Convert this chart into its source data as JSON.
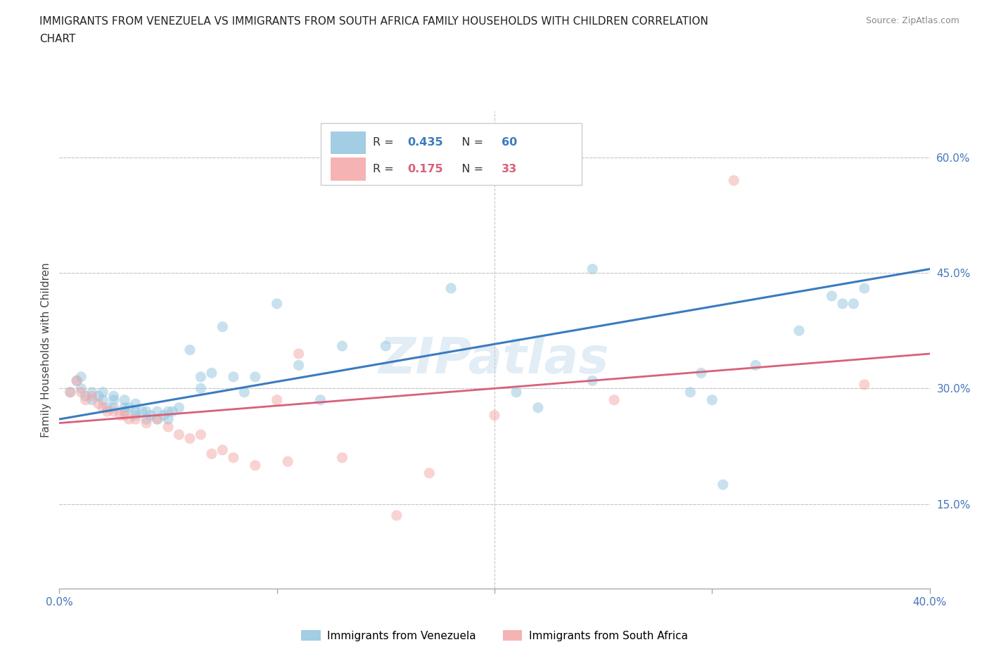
{
  "title_line1": "IMMIGRANTS FROM VENEZUELA VS IMMIGRANTS FROM SOUTH AFRICA FAMILY HOUSEHOLDS WITH CHILDREN CORRELATION",
  "title_line2": "CHART",
  "source": "Source: ZipAtlas.com",
  "ylabel": "Family Households with Children",
  "xlim": [
    0.0,
    0.4
  ],
  "ylim": [
    0.04,
    0.66
  ],
  "xticks": [
    0.0,
    0.1,
    0.2,
    0.3,
    0.4
  ],
  "xtick_labels": [
    "0.0%",
    "",
    "",
    "",
    "40.0%"
  ],
  "ytick_labels_right": [
    "15.0%",
    "30.0%",
    "45.0%",
    "60.0%"
  ],
  "ytick_positions_right": [
    0.15,
    0.3,
    0.45,
    0.6
  ],
  "blue_color": "#92c5de",
  "pink_color": "#f4a6a6",
  "blue_line_color": "#3a7bbf",
  "pink_line_color": "#d9607a",
  "watermark": "ZIPatlas",
  "legend_R_blue": "0.435",
  "legend_N_blue": "60",
  "legend_R_pink": "0.175",
  "legend_N_pink": "33",
  "blue_scatter_x": [
    0.005,
    0.008,
    0.01,
    0.01,
    0.012,
    0.015,
    0.015,
    0.018,
    0.02,
    0.02,
    0.022,
    0.025,
    0.025,
    0.025,
    0.03,
    0.03,
    0.03,
    0.032,
    0.035,
    0.035,
    0.035,
    0.038,
    0.04,
    0.04,
    0.042,
    0.045,
    0.045,
    0.048,
    0.05,
    0.05,
    0.052,
    0.055,
    0.06,
    0.065,
    0.065,
    0.07,
    0.075,
    0.08,
    0.085,
    0.09,
    0.1,
    0.11,
    0.12,
    0.13,
    0.15,
    0.18,
    0.21,
    0.22,
    0.245,
    0.245,
    0.29,
    0.295,
    0.3,
    0.305,
    0.32,
    0.34,
    0.355,
    0.36,
    0.365,
    0.37
  ],
  "blue_scatter_y": [
    0.295,
    0.31,
    0.3,
    0.315,
    0.29,
    0.285,
    0.295,
    0.29,
    0.285,
    0.295,
    0.275,
    0.275,
    0.285,
    0.29,
    0.27,
    0.275,
    0.285,
    0.275,
    0.265,
    0.27,
    0.28,
    0.27,
    0.26,
    0.27,
    0.265,
    0.26,
    0.27,
    0.265,
    0.26,
    0.27,
    0.27,
    0.275,
    0.35,
    0.3,
    0.315,
    0.32,
    0.38,
    0.315,
    0.295,
    0.315,
    0.41,
    0.33,
    0.285,
    0.355,
    0.355,
    0.43,
    0.295,
    0.275,
    0.31,
    0.455,
    0.295,
    0.32,
    0.285,
    0.175,
    0.33,
    0.375,
    0.42,
    0.41,
    0.41,
    0.43
  ],
  "pink_scatter_x": [
    0.005,
    0.008,
    0.01,
    0.012,
    0.015,
    0.018,
    0.02,
    0.022,
    0.025,
    0.028,
    0.03,
    0.032,
    0.035,
    0.04,
    0.045,
    0.05,
    0.055,
    0.06,
    0.065,
    0.07,
    0.075,
    0.08,
    0.09,
    0.1,
    0.105,
    0.11,
    0.13,
    0.155,
    0.17,
    0.2,
    0.255,
    0.31,
    0.37
  ],
  "pink_scatter_y": [
    0.295,
    0.31,
    0.295,
    0.285,
    0.29,
    0.28,
    0.275,
    0.27,
    0.27,
    0.265,
    0.265,
    0.26,
    0.26,
    0.255,
    0.26,
    0.25,
    0.24,
    0.235,
    0.24,
    0.215,
    0.22,
    0.21,
    0.2,
    0.285,
    0.205,
    0.345,
    0.21,
    0.135,
    0.19,
    0.265,
    0.285,
    0.57,
    0.305
  ],
  "blue_line_x": [
    0.0,
    0.4
  ],
  "blue_line_y": [
    0.26,
    0.455
  ],
  "pink_line_x": [
    0.0,
    0.4
  ],
  "pink_line_y": [
    0.255,
    0.345
  ],
  "grid_color": "#c8c8c8",
  "background_color": "#ffffff",
  "marker_size": 120,
  "marker_alpha": 0.5
}
